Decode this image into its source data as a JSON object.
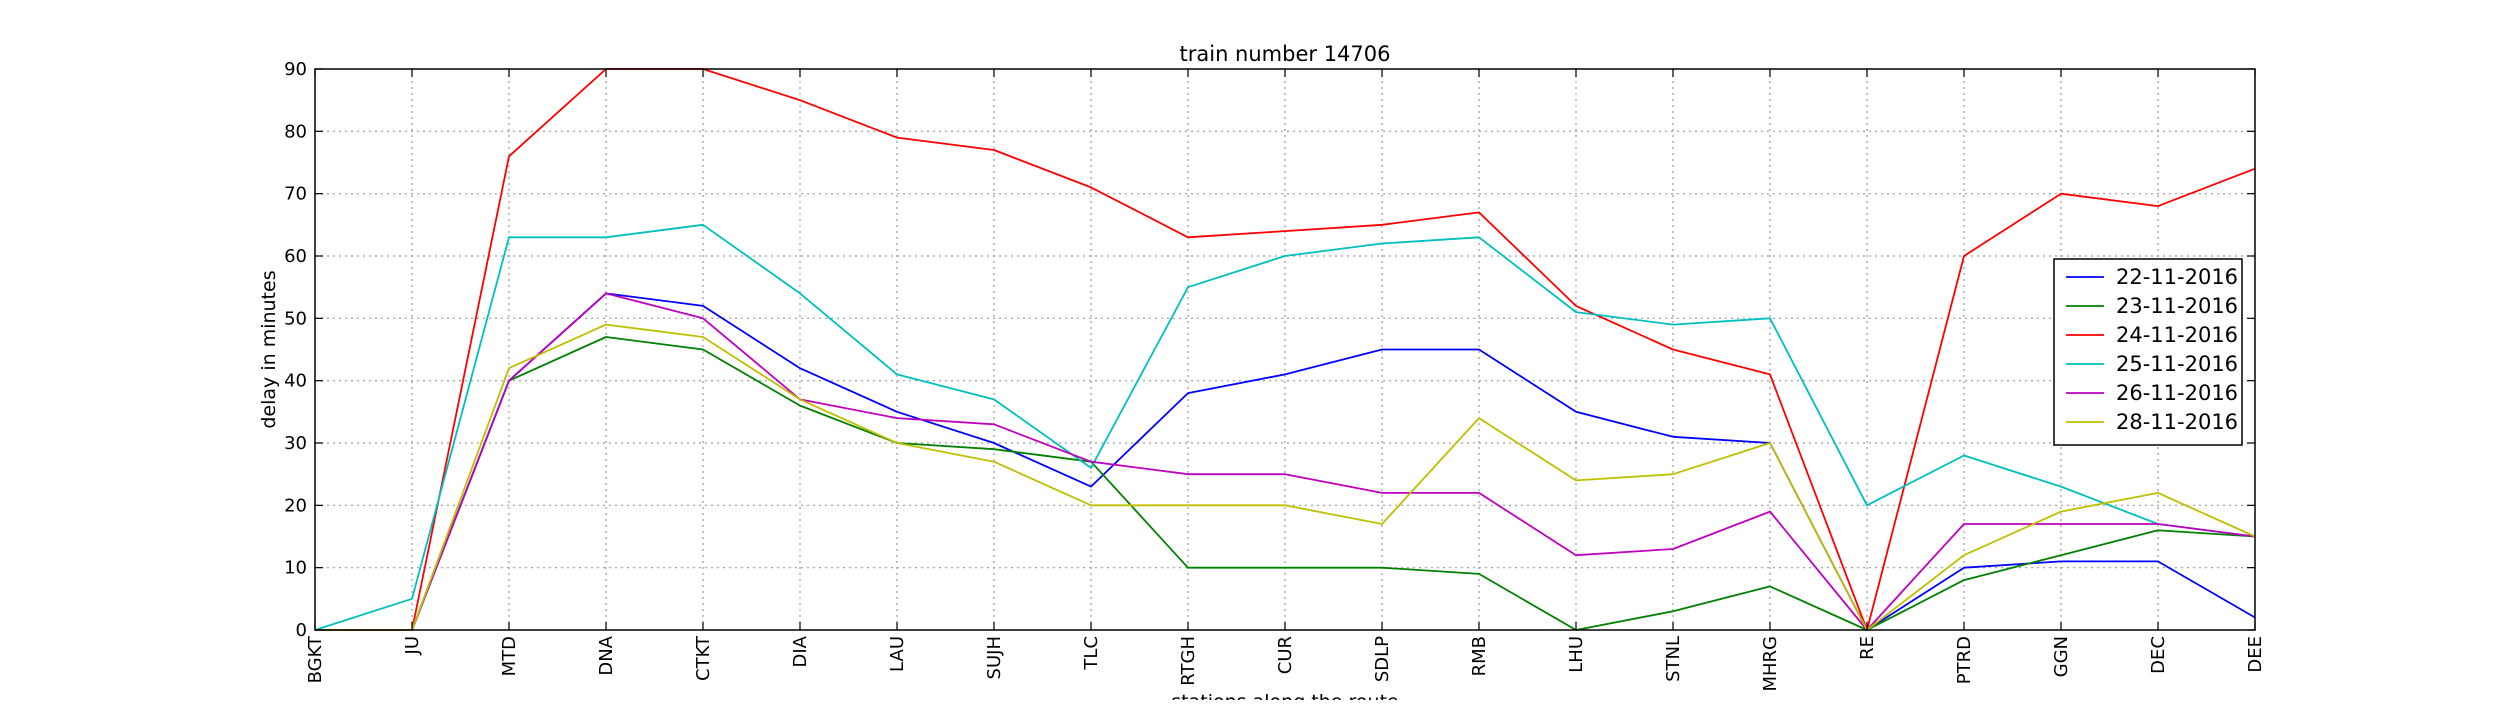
{
  "chart_data": {
    "type": "line",
    "title": "train number 14706",
    "xlabel": "stations along the route",
    "ylabel": "delay in minutes",
    "ylim": [
      0,
      90
    ],
    "yticks": [
      0,
      10,
      20,
      30,
      40,
      50,
      60,
      70,
      80,
      90
    ],
    "grid": true,
    "legend_position": "right",
    "categories": [
      "BGKT",
      "JU",
      "MTD",
      "DNA",
      "CTKT",
      "DIA",
      "LAU",
      "SUJH",
      "TLC",
      "RTGH",
      "CUR",
      "SDLP",
      "RMB",
      "LHU",
      "STNL",
      "MHRG",
      "RE",
      "PTRD",
      "GGN",
      "DEC",
      "DEE"
    ],
    "series": [
      {
        "name": "22-11-2016",
        "color": "#0000ff",
        "values": [
          0,
          0,
          40,
          54,
          52,
          42,
          35,
          30,
          23,
          38,
          41,
          45,
          45,
          35,
          31,
          30,
          0,
          10,
          11,
          11,
          2
        ]
      },
      {
        "name": "23-11-2016",
        "color": "#008000",
        "values": [
          0,
          0,
          40,
          47,
          45,
          36,
          30,
          29,
          27,
          10,
          10,
          10,
          9,
          0,
          3,
          7,
          0,
          8,
          12,
          16,
          15
        ]
      },
      {
        "name": "24-11-2016",
        "color": "#ff0000",
        "values": [
          0,
          0,
          76,
          90,
          90,
          85,
          79,
          77,
          71,
          63,
          64,
          65,
          67,
          52,
          45,
          41,
          0,
          60,
          70,
          68,
          74
        ]
      },
      {
        "name": "25-11-2016",
        "color": "#00bfbf",
        "values": [
          0,
          5,
          63,
          63,
          65,
          54,
          41,
          37,
          26,
          55,
          60,
          62,
          63,
          51,
          49,
          50,
          20,
          28,
          23,
          17,
          15
        ]
      },
      {
        "name": "26-11-2016",
        "color": "#bf00bf",
        "values": [
          0,
          0,
          40,
          54,
          50,
          37,
          34,
          33,
          27,
          25,
          25,
          22,
          22,
          12,
          13,
          19,
          0,
          17,
          17,
          17,
          15
        ]
      },
      {
        "name": "28-11-2016",
        "color": "#bfbf00",
        "values": [
          0,
          0,
          42,
          49,
          47,
          37,
          30,
          27,
          20,
          20,
          20,
          17,
          34,
          24,
          25,
          30,
          0,
          12,
          19,
          22,
          15
        ]
      }
    ]
  }
}
